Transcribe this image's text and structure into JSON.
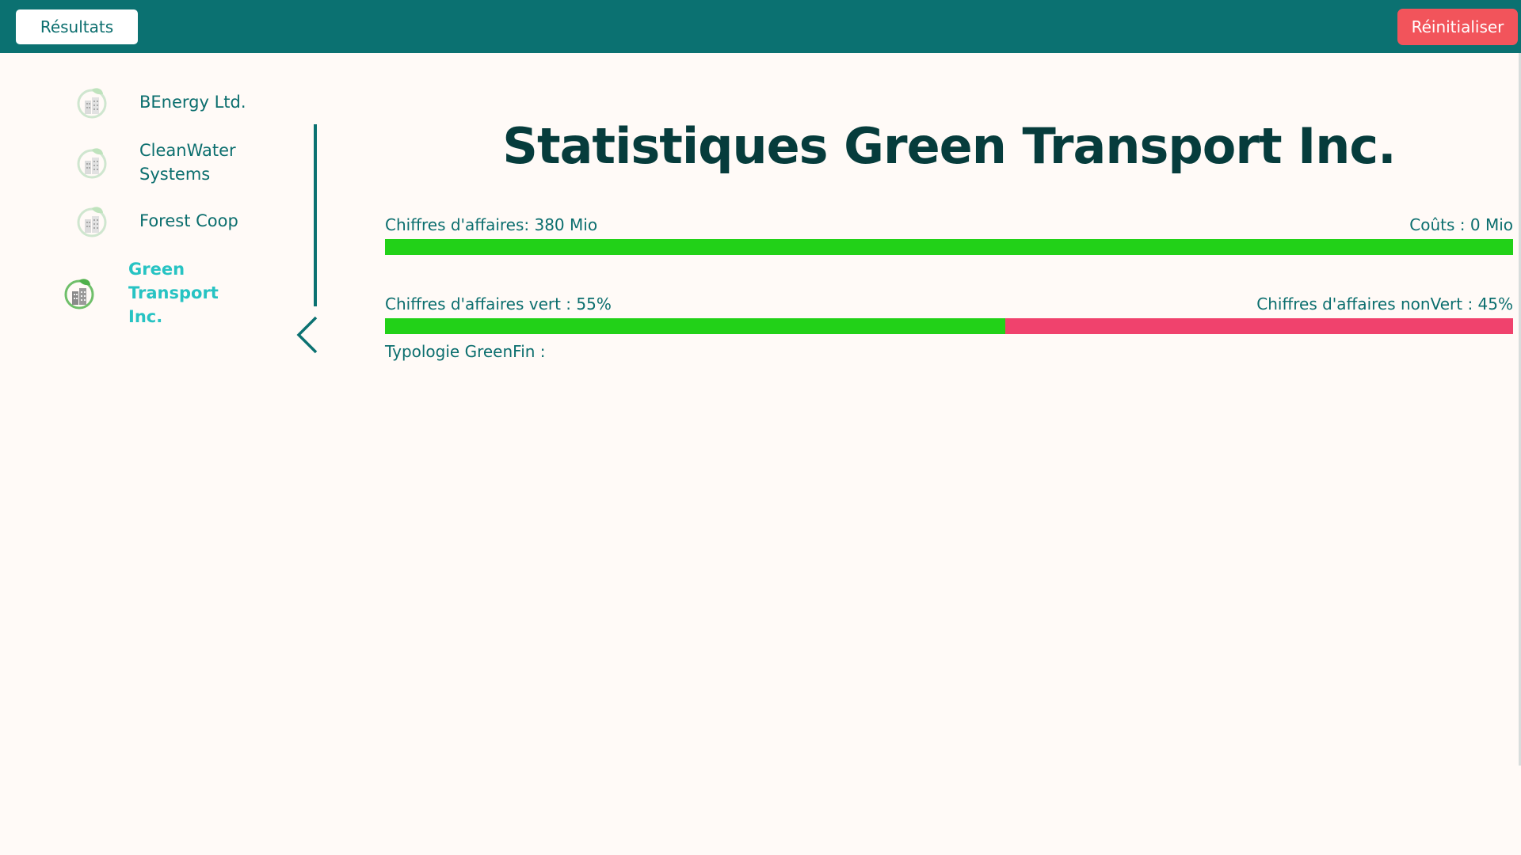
{
  "header": {
    "results_label": "Résultats",
    "reset_label": "Réinitialiser"
  },
  "sidebar": {
    "items": [
      {
        "label": "BEnergy Ltd.",
        "active": false
      },
      {
        "label": "CleanWater Systems",
        "active": false
      },
      {
        "label": "Forest Coop",
        "active": false
      },
      {
        "label": "Green Transport Inc.",
        "active": true
      }
    ],
    "collapse_icon": "chevron-left-icon",
    "company_icon": "eco-building-icon"
  },
  "main": {
    "title": "Statistiques Green Transport Inc.",
    "revenue_label": "Chiffres d'affaires: 380 Mio",
    "costs_label": "Coûts : 0 Mio",
    "revenue_fraction": 1.0,
    "green_label": "Chiffres d'affaires vert : 55%",
    "nongreen_label": "Chiffres d'affaires nonVert : 45%",
    "green_percent": 55,
    "typology_label": "Typologie GreenFin :"
  },
  "colors": {
    "header": "#0b7171",
    "green": "#22d118",
    "red": "#f0426d",
    "reset": "#f2545b",
    "active_text": "#27c3c3"
  }
}
